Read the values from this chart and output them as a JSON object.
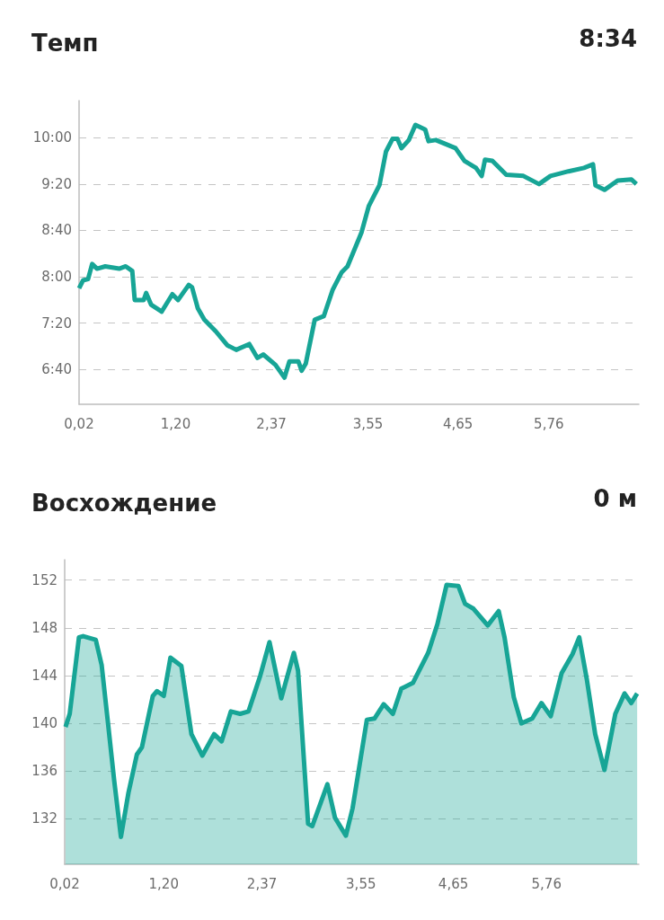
{
  "chart_data": [
    {
      "type": "line",
      "title": "Темп",
      "annotations": [
        "8:34"
      ],
      "grid": "y",
      "xlim": [
        0.02,
        6.86
      ],
      "xticks": [
        {
          "value": 0.02,
          "label": "0,02"
        },
        {
          "value": 1.2,
          "label": "1,20"
        },
        {
          "value": 2.37,
          "label": "2,37"
        },
        {
          "value": 3.55,
          "label": "3,55"
        },
        {
          "value": 4.65,
          "label": "4,65"
        },
        {
          "value": 5.76,
          "label": "5,76"
        }
      ],
      "ylim": [
        370,
        632
      ],
      "yticks": [
        {
          "value": 400,
          "label": "6:40"
        },
        {
          "value": 440,
          "label": "7:20"
        },
        {
          "value": 480,
          "label": "8:00"
        },
        {
          "value": 520,
          "label": "8:40"
        },
        {
          "value": 560,
          "label": "9:20"
        },
        {
          "value": 600,
          "label": "10:00"
        }
      ],
      "series": [
        {
          "color": "#17a596",
          "x": [
            0.02,
            0.07,
            0.13,
            0.18,
            0.24,
            0.34,
            0.51,
            0.59,
            0.67,
            0.7,
            0.81,
            0.84,
            0.9,
            1.03,
            1.16,
            1.23,
            1.36,
            1.4,
            1.47,
            1.55,
            1.69,
            1.83,
            1.94,
            2.1,
            2.2,
            2.27,
            2.42,
            2.53,
            2.59,
            2.7,
            2.74,
            2.79,
            2.9,
            3.01,
            3.12,
            3.23,
            3.3,
            3.47,
            3.56,
            3.69,
            3.77,
            3.85,
            3.91,
            3.96,
            4.05,
            4.13,
            4.25,
            4.29,
            4.38,
            4.62,
            4.73,
            4.87,
            4.94,
            4.98,
            5.07,
            5.24,
            5.45,
            5.64,
            5.78,
            6.0,
            6.19,
            6.3,
            6.33,
            6.44,
            6.6,
            6.77,
            6.83
          ],
          "values": [
            470,
            477,
            478,
            491,
            487,
            489,
            487,
            489,
            485,
            460,
            460,
            466,
            456,
            450,
            465,
            460,
            473,
            471,
            453,
            443,
            433,
            421,
            417,
            422,
            410,
            413,
            404,
            393,
            407,
            407,
            399,
            405,
            443,
            446,
            469,
            484,
            489,
            518,
            541,
            559,
            588,
            599,
            599,
            591,
            598,
            611,
            607,
            597,
            598,
            591,
            580,
            574,
            567,
            581,
            580,
            568,
            567,
            560,
            567,
            571,
            574,
            577,
            559,
            555,
            563,
            564,
            560
          ]
        }
      ]
    },
    {
      "type": "area",
      "title": "Восхождение",
      "annotations": [
        "0 м"
      ],
      "grid": "y",
      "xlim": [
        0.02,
        6.86
      ],
      "xticks": [
        {
          "value": 0.02,
          "label": "0,02"
        },
        {
          "value": 1.2,
          "label": "1,20"
        },
        {
          "value": 2.37,
          "label": "2,37"
        },
        {
          "value": 3.55,
          "label": "3,55"
        },
        {
          "value": 4.65,
          "label": "4,65"
        },
        {
          "value": 5.76,
          "label": "5,76"
        }
      ],
      "ylim": [
        128.2,
        153.7
      ],
      "yticks": [
        132,
        136,
        140,
        144,
        148,
        152
      ],
      "series": [
        {
          "color": "#17a596",
          "x": [
            0.03,
            0.08,
            0.19,
            0.24,
            0.39,
            0.46,
            0.53,
            0.61,
            0.69,
            0.78,
            0.88,
            0.94,
            1.07,
            1.12,
            1.2,
            1.28,
            1.41,
            1.53,
            1.66,
            1.8,
            1.89,
            2.0,
            2.11,
            2.21,
            2.35,
            2.46,
            2.6,
            2.75,
            2.8,
            2.92,
            2.97,
            3.15,
            3.24,
            3.37,
            3.45,
            3.62,
            3.71,
            3.82,
            3.93,
            4.03,
            4.17,
            4.35,
            4.46,
            4.57,
            4.71,
            4.79,
            4.89,
            5.06,
            5.19,
            5.26,
            5.37,
            5.46,
            5.59,
            5.7,
            5.81,
            5.94,
            6.07,
            6.15,
            6.24,
            6.34,
            6.45,
            6.58,
            6.69,
            6.77,
            6.84
          ],
          "values": [
            139.7,
            140.8,
            147.2,
            147.3,
            147.0,
            144.9,
            140.4,
            135.2,
            130.5,
            134.2,
            137.4,
            138.0,
            142.3,
            142.7,
            142.3,
            145.5,
            144.8,
            139.1,
            137.3,
            139.1,
            138.5,
            141.0,
            140.8,
            141.0,
            144.0,
            146.8,
            142.1,
            145.9,
            144.4,
            131.6,
            131.4,
            134.9,
            132.1,
            130.6,
            132.9,
            140.3,
            140.4,
            141.6,
            140.8,
            142.9,
            143.4,
            145.9,
            148.3,
            151.6,
            151.5,
            150.0,
            149.6,
            148.2,
            149.4,
            147.2,
            142.2,
            140.0,
            140.4,
            141.7,
            140.6,
            144.2,
            145.8,
            147.2,
            143.7,
            139.1,
            136.1,
            140.8,
            142.5,
            141.7,
            142.5
          ]
        }
      ]
    }
  ]
}
